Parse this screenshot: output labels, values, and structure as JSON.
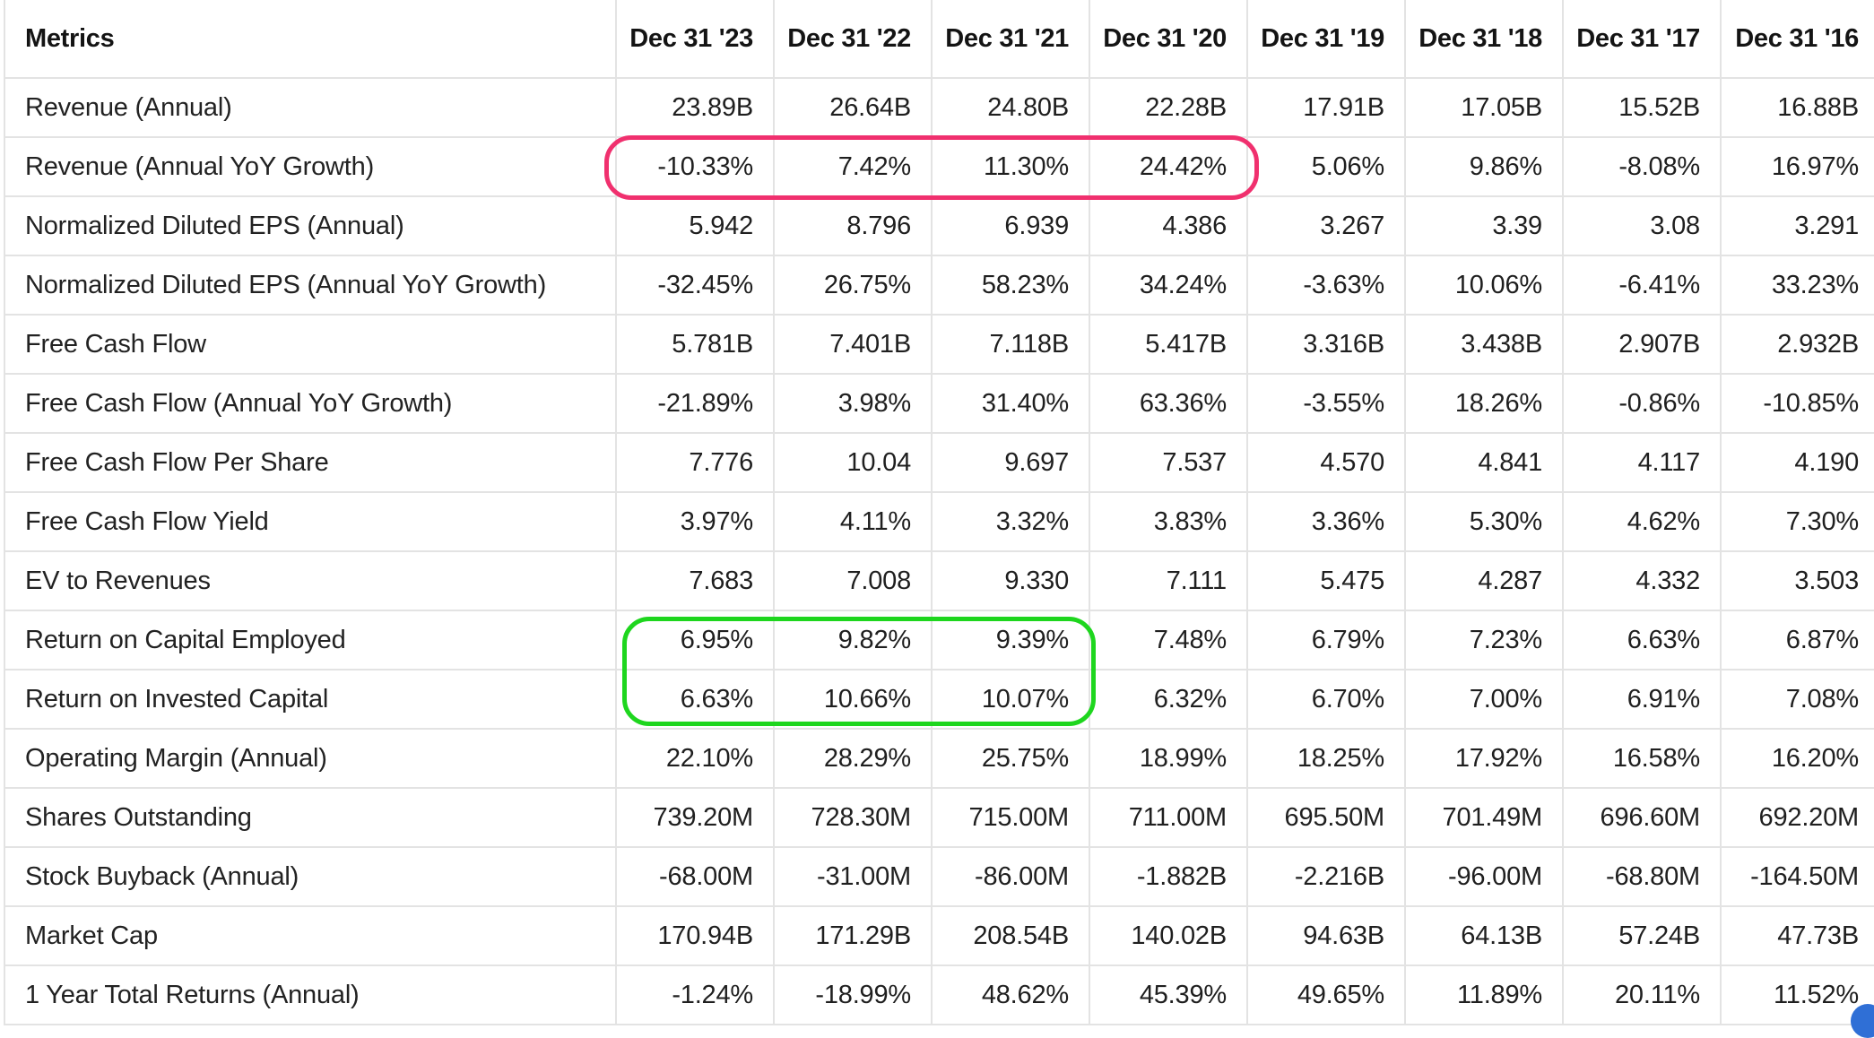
{
  "table": {
    "header": {
      "metric_label": "Metrics",
      "periods": [
        "Dec 31 '23",
        "Dec 31 '22",
        "Dec 31 '21",
        "Dec 31 '20",
        "Dec 31 '19",
        "Dec 31 '18",
        "Dec 31 '17",
        "Dec 31 '16"
      ]
    },
    "rows": [
      {
        "label": "Revenue (Annual)",
        "values": [
          "23.89B",
          "26.64B",
          "24.80B",
          "22.28B",
          "17.91B",
          "17.05B",
          "15.52B",
          "16.88B"
        ]
      },
      {
        "label": "Revenue (Annual YoY Growth)",
        "values": [
          "-10.33%",
          "7.42%",
          "11.30%",
          "24.42%",
          "5.06%",
          "9.86%",
          "-8.08%",
          "16.97%"
        ]
      },
      {
        "label": "Normalized Diluted EPS (Annual)",
        "values": [
          "5.942",
          "8.796",
          "6.939",
          "4.386",
          "3.267",
          "3.39",
          "3.08",
          "3.291"
        ]
      },
      {
        "label": "Normalized Diluted EPS (Annual YoY Growth)",
        "values": [
          "-32.45%",
          "26.75%",
          "58.23%",
          "34.24%",
          "-3.63%",
          "10.06%",
          "-6.41%",
          "33.23%"
        ]
      },
      {
        "label": "Free Cash Flow",
        "values": [
          "5.781B",
          "7.401B",
          "7.118B",
          "5.417B",
          "3.316B",
          "3.438B",
          "2.907B",
          "2.932B"
        ]
      },
      {
        "label": "Free Cash Flow (Annual YoY Growth)",
        "values": [
          "-21.89%",
          "3.98%",
          "31.40%",
          "63.36%",
          "-3.55%",
          "18.26%",
          "-0.86%",
          "-10.85%"
        ]
      },
      {
        "label": "Free Cash Flow Per Share",
        "values": [
          "7.776",
          "10.04",
          "9.697",
          "7.537",
          "4.570",
          "4.841",
          "4.117",
          "4.190"
        ]
      },
      {
        "label": "Free Cash Flow Yield",
        "values": [
          "3.97%",
          "4.11%",
          "3.32%",
          "3.83%",
          "3.36%",
          "5.30%",
          "4.62%",
          "7.30%"
        ]
      },
      {
        "label": "EV to Revenues",
        "values": [
          "7.683",
          "7.008",
          "9.330",
          "7.111",
          "5.475",
          "4.287",
          "4.332",
          "3.503"
        ]
      },
      {
        "label": "Return on Capital Employed",
        "values": [
          "6.95%",
          "9.82%",
          "9.39%",
          "7.48%",
          "6.79%",
          "7.23%",
          "6.63%",
          "6.87%"
        ]
      },
      {
        "label": "Return on Invested Capital",
        "values": [
          "6.63%",
          "10.66%",
          "10.07%",
          "6.32%",
          "6.70%",
          "7.00%",
          "6.91%",
          "7.08%"
        ]
      },
      {
        "label": "Operating Margin (Annual)",
        "values": [
          "22.10%",
          "28.29%",
          "25.75%",
          "18.99%",
          "18.25%",
          "17.92%",
          "16.58%",
          "16.20%"
        ]
      },
      {
        "label": "Shares Outstanding",
        "values": [
          "739.20M",
          "728.30M",
          "715.00M",
          "711.00M",
          "695.50M",
          "701.49M",
          "696.60M",
          "692.20M"
        ]
      },
      {
        "label": "Stock Buyback (Annual)",
        "values": [
          "-68.00M",
          "-31.00M",
          "-86.00M",
          "-1.882B",
          "-2.216B",
          "-96.00M",
          "-68.80M",
          "-164.50M"
        ]
      },
      {
        "label": "Market Cap",
        "values": [
          "170.94B",
          "171.29B",
          "208.54B",
          "140.02B",
          "94.63B",
          "64.13B",
          "57.24B",
          "47.73B"
        ]
      },
      {
        "label": "1 Year Total Returns (Annual)",
        "values": [
          "-1.24%",
          "-18.99%",
          "48.62%",
          "45.39%",
          "49.65%",
          "11.89%",
          "20.11%",
          "11.52%"
        ]
      }
    ]
  },
  "annotations": {
    "pink_color": "#f0306e",
    "green_color": "#1ed61e"
  }
}
